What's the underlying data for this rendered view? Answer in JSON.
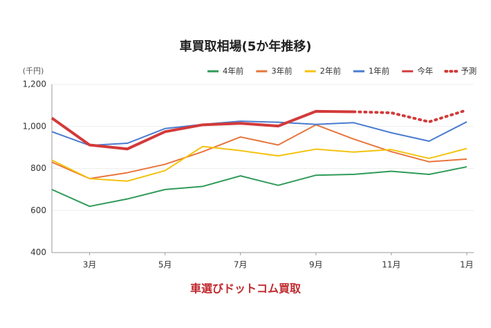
{
  "chart_data": {
    "type": "line",
    "title": "車買取相場(5か年推移)",
    "y_unit": "(千円)",
    "source": "車選びドットコム買取",
    "categories": [
      null,
      "3月",
      null,
      "5月",
      null,
      "7月",
      null,
      "9月",
      null,
      "11月",
      null,
      "1月"
    ],
    "ylim": [
      400,
      1200
    ],
    "yticks": [
      400,
      600,
      800,
      {
        "value": 1000,
        "label": "1,000"
      },
      {
        "value": 1200,
        "label": "1,200"
      }
    ],
    "grid": true,
    "legend": "top-right",
    "series": [
      {
        "name": "4年前",
        "color": "#2f9a58",
        "values": [
          700,
          620,
          655,
          700,
          715,
          765,
          720,
          768,
          772,
          787,
          772,
          808
        ]
      },
      {
        "name": "3年前",
        "color": "#e8743b",
        "values": [
          830,
          752,
          780,
          820,
          880,
          950,
          912,
          1008,
          940,
          880,
          832,
          845
        ]
      },
      {
        "name": "2年前",
        "color": "#f4c20d",
        "values": [
          840,
          752,
          740,
          790,
          905,
          885,
          860,
          892,
          878,
          890,
          848,
          895
        ]
      },
      {
        "name": "1年前",
        "color": "#4a7bd0",
        "values": [
          975,
          910,
          920,
          990,
          1010,
          1025,
          1020,
          1010,
          1018,
          970,
          930,
          1022
        ]
      },
      {
        "name": "今年",
        "color": "#d33a3a",
        "values": [
          1040,
          912,
          893,
          975,
          1008,
          1015,
          1002,
          1072,
          1070,
          null,
          null,
          null
        ]
      },
      {
        "name": "予測",
        "color": "#d33a3a",
        "dashed": true,
        "values": [
          null,
          null,
          null,
          null,
          null,
          null,
          null,
          null,
          1070,
          1065,
          1022,
          1078
        ]
      }
    ]
  }
}
